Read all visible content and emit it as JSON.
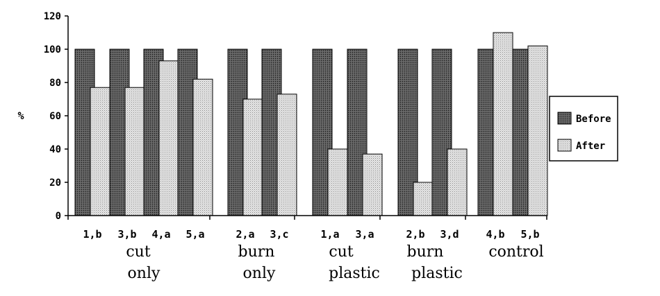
{
  "chart_data": {
    "type": "bar",
    "title": "",
    "xlabel": "",
    "ylabel": "%",
    "ylim": [
      0,
      120
    ],
    "yticks": [
      0,
      20,
      40,
      60,
      80,
      100,
      120
    ],
    "grid": false,
    "legend_position": "right",
    "categories": [
      "1,b",
      "3,b",
      "4,a",
      "5,a",
      "2,a",
      "3,c",
      "1,a",
      "3,a",
      "2,b",
      "3,d",
      "4,b",
      "5,b"
    ],
    "groups": [
      {
        "label_line1": "cut",
        "label_line2": "only",
        "categories": [
          "1,b",
          "3,b",
          "4,a",
          "5,a"
        ]
      },
      {
        "label_line1": "burn",
        "label_line2": "only",
        "categories": [
          "2,a",
          "3,c"
        ]
      },
      {
        "label_line1": "cut",
        "label_line2": "plastic",
        "categories": [
          "1,a",
          "3,a"
        ]
      },
      {
        "label_line1": "burn",
        "label_line2": "plastic",
        "categories": [
          "2,b",
          "3,d"
        ]
      },
      {
        "label_line1": "control",
        "label_line2": "",
        "categories": [
          "4,b",
          "5,b"
        ]
      }
    ],
    "series": [
      {
        "name": "Before",
        "pattern": "dark-dots",
        "values": [
          100,
          100,
          100,
          100,
          100,
          100,
          100,
          100,
          100,
          100,
          100,
          100
        ]
      },
      {
        "name": "After",
        "pattern": "light-dots",
        "values": [
          77,
          77,
          93,
          82,
          70,
          73,
          40,
          37,
          20,
          40,
          110,
          102
        ]
      }
    ]
  }
}
